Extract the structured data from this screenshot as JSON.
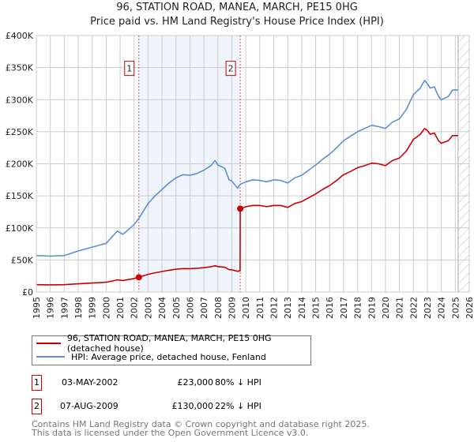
{
  "chart_data": {
    "type": "line",
    "title": "96, STATION ROAD, MANEA, MARCH, PE15 0HG",
    "subtitle": "Price paid vs. HM Land Registry's House Price Index (HPI)",
    "xlim": [
      1995,
      2026
    ],
    "ylim": [
      0,
      400000
    ],
    "x_ticks": [
      "1995",
      "1996",
      "1997",
      "1998",
      "1999",
      "2000",
      "2001",
      "2002",
      "2003",
      "2004",
      "2005",
      "2006",
      "2007",
      "2008",
      "2009",
      "2010",
      "2011",
      "2012",
      "2013",
      "2014",
      "2015",
      "2016",
      "2017",
      "2018",
      "2019",
      "2020",
      "2021",
      "2022",
      "2023",
      "2024",
      "2025",
      "2026"
    ],
    "y_ticks": [
      {
        "v": 0,
        "label": "£0"
      },
      {
        "v": 50000,
        "label": "£50K"
      },
      {
        "v": 100000,
        "label": "£100K"
      },
      {
        "v": 150000,
        "label": "£150K"
      },
      {
        "v": 200000,
        "label": "£200K"
      },
      {
        "v": 250000,
        "label": "£250K"
      },
      {
        "v": 300000,
        "label": "£300K"
      },
      {
        "v": 350000,
        "label": "£350K"
      },
      {
        "v": 400000,
        "label": "£400K"
      }
    ],
    "grid": true,
    "shaded_range": [
      2002.34,
      2009.6
    ],
    "forecast_hatch_from": 2025.2,
    "series": [
      {
        "name": "96, STATION ROAD, MANEA, MARCH, PE15 0HG (detached house)",
        "color": "#cc0000",
        "x": [
          1995,
          1996,
          1997,
          1998,
          1999,
          2000,
          2000.8,
          2001.2,
          2002,
          2002.34,
          2003,
          2003.5,
          2004,
          2004.5,
          2005,
          2005.5,
          2006,
          2006.5,
          2007,
          2007.5,
          2007.8,
          2008,
          2008.5,
          2008.8,
          2009,
          2009.4,
          2009.59,
          2009.6,
          2010,
          2010.5,
          2011,
          2011.5,
          2012,
          2012.5,
          2013,
          2013.5,
          2014,
          2014.5,
          2015,
          2015.5,
          2016,
          2016.5,
          2017,
          2017.5,
          2018,
          2018.5,
          2019,
          2019.5,
          2020,
          2020.5,
          2021,
          2021.5,
          2022,
          2022.5,
          2022.8,
          2023,
          2023.2,
          2023.5,
          2023.8,
          2024,
          2024.5,
          2024.8,
          2025.2
        ],
        "values": [
          11400,
          11200,
          11400,
          12800,
          14000,
          15200,
          19000,
          18000,
          21000,
          23000,
          27600,
          30000,
          32000,
          34000,
          35600,
          36600,
          36400,
          37000,
          38000,
          39400,
          41000,
          39600,
          38600,
          35000,
          34600,
          32400,
          33000,
          130000,
          133000,
          135000,
          135000,
          133000,
          135000,
          135000,
          132000,
          138000,
          141000,
          147000,
          153000,
          160000,
          166000,
          174000,
          183000,
          188000,
          194000,
          197000,
          201000,
          200000,
          197000,
          205000,
          209000,
          220000,
          238000,
          246000,
          255000,
          252000,
          246000,
          248000,
          236000,
          232000,
          236000,
          244000,
          244000
        ]
      },
      {
        "name": "HPI: Average price, detached house, Fenland",
        "color": "#5b8fd6",
        "x": [
          1995,
          1996,
          1997,
          1998,
          1999,
          2000,
          2000.8,
          2001.2,
          2002,
          2002.34,
          2003,
          2003.5,
          2004,
          2004.5,
          2005,
          2005.5,
          2006,
          2006.5,
          2007,
          2007.5,
          2007.8,
          2008,
          2008.5,
          2008.8,
          2009,
          2009.4,
          2009.6,
          2010,
          2010.5,
          2011,
          2011.5,
          2012,
          2012.5,
          2013,
          2013.5,
          2014,
          2014.5,
          2015,
          2015.5,
          2016,
          2016.5,
          2017,
          2017.5,
          2018,
          2018.5,
          2019,
          2019.5,
          2020,
          2020.5,
          2021,
          2021.5,
          2022,
          2022.5,
          2022.8,
          2023,
          2023.2,
          2023.5,
          2023.8,
          2024,
          2024.5,
          2024.8,
          2025.2
        ],
        "values": [
          57000,
          56000,
          57000,
          64000,
          70000,
          76000,
          95000,
          90000,
          105000,
          115000,
          138000,
          150000,
          160000,
          170000,
          178000,
          183000,
          182000,
          185000,
          190000,
          197000,
          205000,
          198000,
          193000,
          175000,
          173000,
          162000,
          168000,
          172000,
          175000,
          174000,
          172000,
          175000,
          174000,
          170000,
          178000,
          182000,
          190000,
          198000,
          207000,
          215000,
          225000,
          236000,
          243000,
          250000,
          255000,
          260000,
          258000,
          255000,
          265000,
          270000,
          285000,
          308000,
          318000,
          330000,
          325000,
          318000,
          320000,
          305000,
          300000,
          305000,
          315000,
          315000
        ]
      }
    ],
    "sales": [
      {
        "marker": "1",
        "x": 2002.34,
        "value": 23000
      },
      {
        "marker": "2",
        "x": 2009.6,
        "value": 130000
      }
    ]
  },
  "legend": {
    "property": "96, STATION ROAD, MANEA, MARCH, PE15 0HG (detached house)",
    "hpi": "HPI: Average price, detached house, Fenland"
  },
  "transactions": [
    {
      "num": "1",
      "date": "03-MAY-2002",
      "price": "£23,000",
      "delta": "80% ↓ HPI"
    },
    {
      "num": "2",
      "date": "07-AUG-2009",
      "price": "£130,000",
      "delta": "22% ↓ HPI"
    }
  ],
  "footer": {
    "line1": "Contains HM Land Registry data © Crown copyright and database right 2025.",
    "line2": "This data is licensed under the Open Government Licence v3.0."
  }
}
